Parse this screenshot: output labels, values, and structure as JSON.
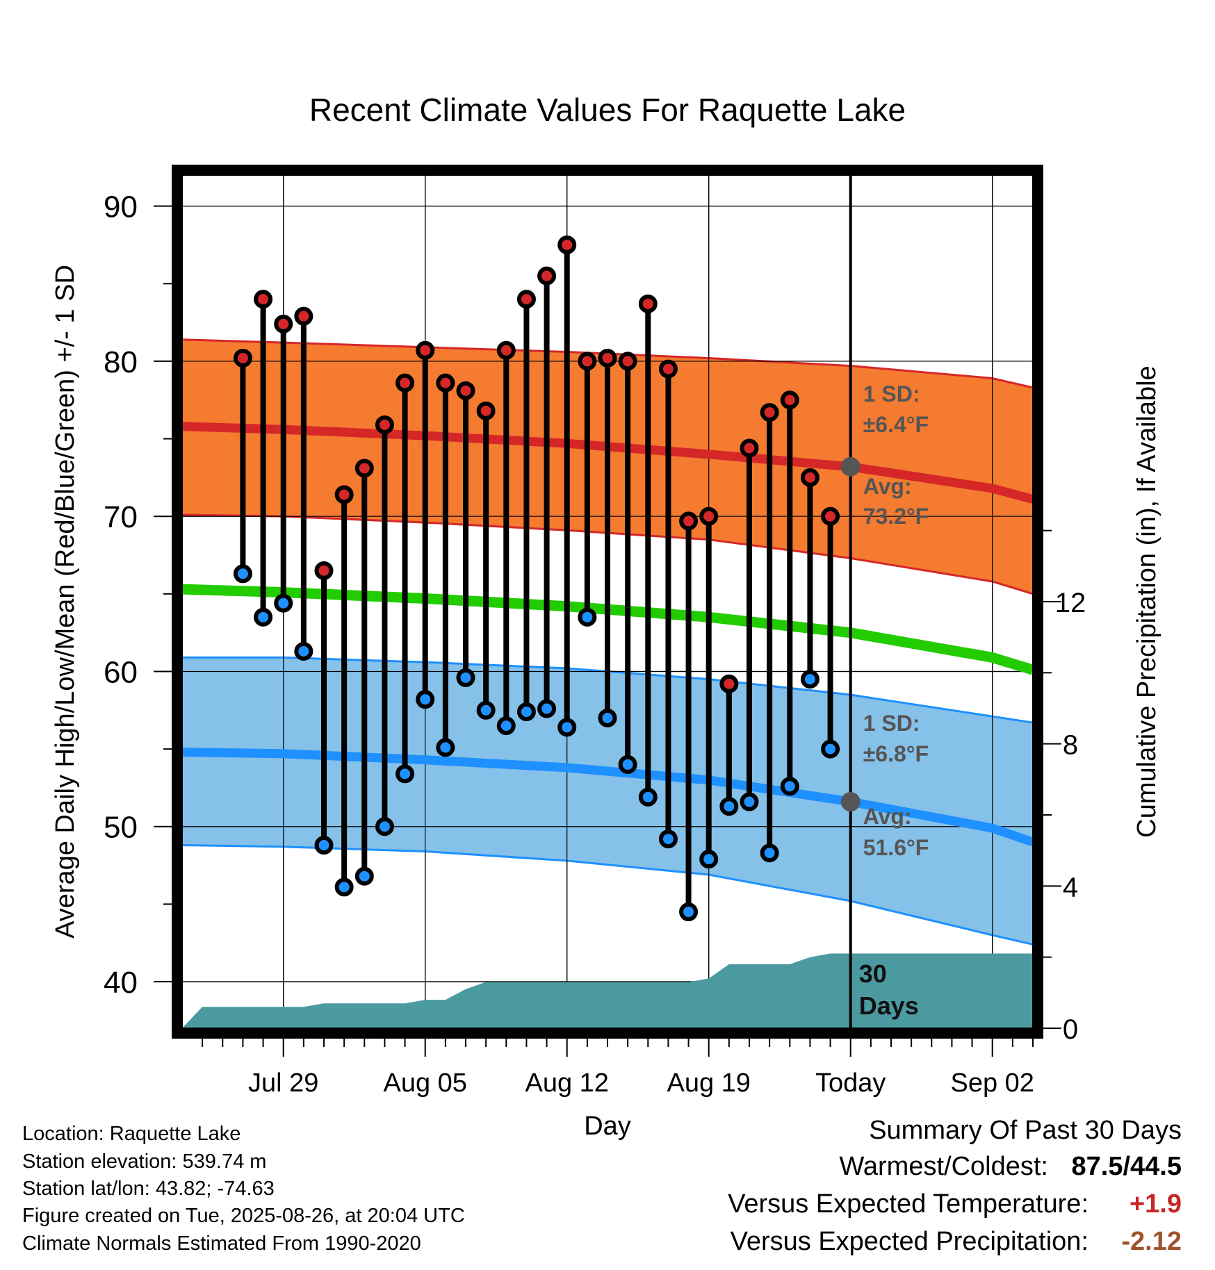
{
  "chart_data": {
    "type": "climate",
    "title": "Recent Climate Values For Raquette Lake",
    "xlabel": "Day",
    "ylabel_left": "Average Daily High/Low/Mean (Red/Blue/Green) +/- 1 SD",
    "ylabel_right": "Cumulative Precipitation (in), If Available",
    "ylim_left": [
      37,
      92
    ],
    "yticks_left": [
      40,
      50,
      60,
      70,
      80,
      90
    ],
    "ylim_right": [
      0,
      24
    ],
    "yticks_right": [
      0,
      4,
      8,
      12
    ],
    "xlim": [
      "2025-07-24",
      "2025-09-04"
    ],
    "xticks": [
      {
        "date": "2025-07-29",
        "label": "Jul 29"
      },
      {
        "date": "2025-08-05",
        "label": "Aug 05"
      },
      {
        "date": "2025-08-12",
        "label": "Aug 12"
      },
      {
        "date": "2025-08-19",
        "label": "Aug 19"
      },
      {
        "date": "2025-08-26",
        "label": "Today"
      },
      {
        "date": "2025-09-02",
        "label": "Sep 02"
      }
    ],
    "today": "2025-08-26",
    "grid": true,
    "normals": {
      "dates": [
        "2025-07-24",
        "2025-07-29",
        "2025-08-05",
        "2025-08-12",
        "2025-08-19",
        "2025-08-26",
        "2025-09-02",
        "2025-09-04"
      ],
      "avg_high": [
        75.8,
        75.6,
        75.2,
        74.7,
        74.0,
        73.2,
        71.8,
        71.1
      ],
      "high_sd_upper": [
        81.4,
        81.2,
        80.9,
        80.6,
        80.2,
        79.7,
        78.9,
        78.3
      ],
      "high_sd_lower": [
        70.1,
        70.0,
        69.6,
        69.1,
        68.5,
        67.3,
        65.8,
        65.0
      ],
      "avg_mean": [
        65.3,
        65.1,
        64.7,
        64.2,
        63.5,
        62.5,
        60.9,
        60.1
      ],
      "avg_low": [
        54.8,
        54.7,
        54.3,
        53.8,
        53.0,
        51.6,
        49.9,
        49.0
      ],
      "low_sd_upper": [
        60.9,
        60.9,
        60.6,
        60.2,
        59.5,
        58.5,
        57.1,
        56.7
      ],
      "low_sd_lower": [
        48.8,
        48.7,
        48.4,
        47.8,
        46.9,
        45.2,
        43.0,
        42.4
      ]
    },
    "daily": [
      {
        "date": "2025-07-27",
        "high": 80.2,
        "low": 66.3
      },
      {
        "date": "2025-07-28",
        "high": 84.0,
        "low": 63.5
      },
      {
        "date": "2025-07-29",
        "high": 82.4,
        "low": 64.4
      },
      {
        "date": "2025-07-30",
        "high": 82.9,
        "low": 61.3
      },
      {
        "date": "2025-07-31",
        "high": 66.5,
        "low": 48.8
      },
      {
        "date": "2025-08-01",
        "high": 71.4,
        "low": 46.1
      },
      {
        "date": "2025-08-02",
        "high": 73.1,
        "low": 46.8
      },
      {
        "date": "2025-08-03",
        "high": 75.9,
        "low": 50.0
      },
      {
        "date": "2025-08-04",
        "high": 78.6,
        "low": 53.4
      },
      {
        "date": "2025-08-05",
        "high": 80.7,
        "low": 58.2
      },
      {
        "date": "2025-08-06",
        "high": 78.6,
        "low": 55.1
      },
      {
        "date": "2025-08-07",
        "high": 78.1,
        "low": 59.6
      },
      {
        "date": "2025-08-08",
        "high": 76.8,
        "low": 57.5
      },
      {
        "date": "2025-08-09",
        "high": 80.7,
        "low": 56.5
      },
      {
        "date": "2025-08-10",
        "high": 84.0,
        "low": 57.4
      },
      {
        "date": "2025-08-11",
        "high": 85.5,
        "low": 57.6
      },
      {
        "date": "2025-08-12",
        "high": 87.5,
        "low": 56.4
      },
      {
        "date": "2025-08-13",
        "high": 80.0,
        "low": 63.5
      },
      {
        "date": "2025-08-14",
        "high": 80.2,
        "low": 57.0
      },
      {
        "date": "2025-08-15",
        "high": 80.0,
        "low": 54.0
      },
      {
        "date": "2025-08-16",
        "high": 83.7,
        "low": 51.9
      },
      {
        "date": "2025-08-17",
        "high": 79.5,
        "low": 49.2
      },
      {
        "date": "2025-08-18",
        "high": 69.7,
        "low": 44.5
      },
      {
        "date": "2025-08-19",
        "high": 70.0,
        "low": 47.9
      },
      {
        "date": "2025-08-20",
        "high": 59.2,
        "low": 51.3
      },
      {
        "date": "2025-08-21",
        "high": 74.4,
        "low": 51.6
      },
      {
        "date": "2025-08-22",
        "high": 76.7,
        "low": 48.3
      },
      {
        "date": "2025-08-23",
        "high": 77.5,
        "low": 52.6
      },
      {
        "date": "2025-08-24",
        "high": 72.5,
        "low": 59.5
      },
      {
        "date": "2025-08-25",
        "high": 70.0,
        "low": 55.0
      }
    ],
    "precip_cumulative": {
      "dates": [
        "2025-07-24",
        "2025-07-25",
        "2025-07-30",
        "2025-07-31",
        "2025-08-04",
        "2025-08-05",
        "2025-08-06",
        "2025-08-07",
        "2025-08-08",
        "2025-08-18",
        "2025-08-19",
        "2025-08-20",
        "2025-08-23",
        "2025-08-24",
        "2025-08-25",
        "2025-09-04"
      ],
      "values": [
        0.0,
        0.6,
        0.6,
        0.7,
        0.7,
        0.8,
        0.8,
        1.1,
        1.3,
        1.3,
        1.4,
        1.8,
        1.8,
        2.0,
        2.1,
        2.1
      ]
    },
    "annotations": {
      "high_sd_label": "1 SD:",
      "high_sd_value": "±6.4°F",
      "high_avg_label": "Avg:",
      "high_avg_value": "73.2°F",
      "low_sd_label": "1 SD:",
      "low_sd_value": "±6.8°F",
      "low_avg_label": "Avg:",
      "low_avg_value": "51.6°F",
      "precip_label_1": "30",
      "precip_label_2": "Days"
    },
    "colors": {
      "high": "#d62728",
      "high_band": "#f47b30",
      "mean": "#22cc00",
      "low": "#1e90ff",
      "low_band": "#85c1e9",
      "precip": "#4a9aa0",
      "annotation": "#555555"
    }
  },
  "info": {
    "location": "Location: Raquette Lake",
    "elevation": "Station elevation: 539.74 m",
    "latlon": "Station lat/lon: 43.82; -74.63",
    "created": "Figure created on Tue, 2025-08-26, at 20:04 UTC",
    "normals": "Climate Normals Estimated From 1990-2020"
  },
  "summary": {
    "title": "Summary Of Past 30 Days",
    "warmest_label": "Warmest/Coldest:",
    "warmest_value": "87.5/44.5",
    "temp_label": "Versus Expected Temperature:",
    "temp_value": "+1.9",
    "temp_color": "#c62828",
    "precip_label": "Versus Expected Precipitation:",
    "precip_value": "-2.12",
    "precip_color": "#a0522d"
  }
}
